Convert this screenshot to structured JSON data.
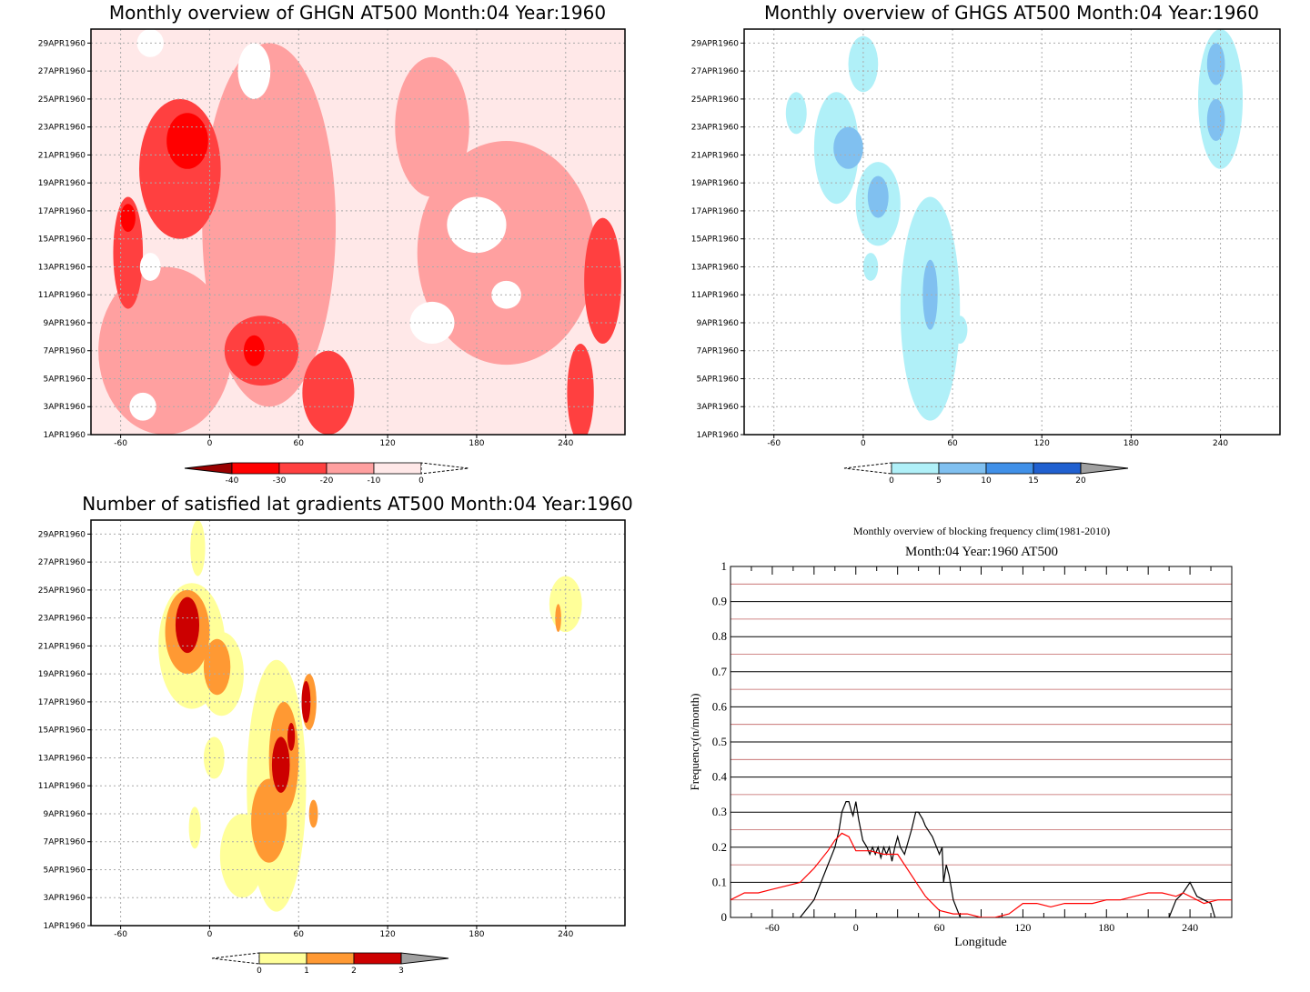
{
  "chart_data": [
    {
      "type": "heatmap",
      "title": "Monthly overview of GHGN AT500 Month:04 Year:1960",
      "x_ticks": [
        "-60",
        "0",
        "60",
        "120",
        "180",
        "240"
      ],
      "x_tick_values": [
        -60,
        0,
        60,
        120,
        180,
        240
      ],
      "xlim": [
        -80,
        280
      ],
      "y_ticks": [
        "1APR1960",
        "3APR1960",
        "5APR1960",
        "7APR1960",
        "9APR1960",
        "11APR1960",
        "13APR1960",
        "15APR1960",
        "17APR1960",
        "19APR1960",
        "21APR1960",
        "23APR1960",
        "25APR1960",
        "27APR1960",
        "29APR1960"
      ],
      "colorbar": {
        "labels": [
          "-40",
          "-30",
          "-20",
          "-10",
          "0"
        ],
        "colors": [
          "#ff0000",
          "#ff4040",
          "#ffa0a0",
          "#ffe8e8"
        ],
        "end_colors": [
          "#990000",
          "#ffffff"
        ]
      },
      "blobs": [
        {
          "x": -15,
          "day": 22,
          "w": 28,
          "h": 4,
          "level": 1
        },
        {
          "x": -55,
          "day": 16.5,
          "w": 10,
          "h": 2,
          "level": 1
        },
        {
          "x": 30,
          "day": 7,
          "w": 14,
          "h": 2.2,
          "level": 1
        },
        {
          "x": -20,
          "day": 20,
          "w": 55,
          "h": 10,
          "level": 2
        },
        {
          "x": 35,
          "day": 7,
          "w": 50,
          "h": 5,
          "level": 2
        },
        {
          "x": -55,
          "day": 14,
          "w": 20,
          "h": 8,
          "level": 2
        },
        {
          "x": 80,
          "day": 4,
          "w": 35,
          "h": 6,
          "level": 2
        },
        {
          "x": 265,
          "day": 12,
          "w": 25,
          "h": 9,
          "level": 2
        },
        {
          "x": 250,
          "day": 4,
          "w": 18,
          "h": 7,
          "level": 2
        },
        {
          "x": 40,
          "day": 16,
          "w": 90,
          "h": 26,
          "level": 3
        },
        {
          "x": -30,
          "day": 7,
          "w": 90,
          "h": 12,
          "level": 3
        },
        {
          "x": 200,
          "day": 14,
          "w": 120,
          "h": 16,
          "level": 3
        },
        {
          "x": 150,
          "day": 23,
          "w": 50,
          "h": 10,
          "level": 3
        }
      ]
    },
    {
      "type": "heatmap",
      "title": "Monthly overview of GHGS AT500 Month:04 Year:1960",
      "x_ticks": [
        "-60",
        "0",
        "60",
        "120",
        "180",
        "240"
      ],
      "x_tick_values": [
        -60,
        0,
        60,
        120,
        180,
        240
      ],
      "xlim": [
        -80,
        280
      ],
      "y_ticks": [
        "1APR1960",
        "3APR1960",
        "5APR1960",
        "7APR1960",
        "9APR1960",
        "11APR1960",
        "13APR1960",
        "15APR1960",
        "17APR1960",
        "19APR1960",
        "21APR1960",
        "23APR1960",
        "25APR1960",
        "27APR1960",
        "29APR1960"
      ],
      "colorbar": {
        "labels": [
          "0",
          "5",
          "10",
          "15",
          "20"
        ],
        "colors": [
          "#b0f0f8",
          "#80c0f0",
          "#4090e8",
          "#2060d0"
        ],
        "end_colors": [
          "#ffffff",
          "#a0a0a0"
        ]
      },
      "blobs": [
        {
          "x": -18,
          "day": 21.5,
          "w": 30,
          "h": 8,
          "level": 1
        },
        {
          "x": 10,
          "day": 17.5,
          "w": 30,
          "h": 6,
          "level": 1
        },
        {
          "x": -45,
          "day": 24,
          "w": 14,
          "h": 3,
          "level": 1
        },
        {
          "x": 0,
          "day": 27.5,
          "w": 20,
          "h": 4,
          "level": 1
        },
        {
          "x": 45,
          "day": 10,
          "w": 40,
          "h": 16,
          "level": 1
        },
        {
          "x": 240,
          "day": 25,
          "w": 30,
          "h": 10,
          "level": 1
        },
        {
          "x": 5,
          "day": 13,
          "w": 10,
          "h": 2,
          "level": 1
        },
        {
          "x": 65,
          "day": 8.5,
          "w": 10,
          "h": 2,
          "level": 1
        },
        {
          "x": -10,
          "day": 21.5,
          "w": 20,
          "h": 3,
          "level": 2
        },
        {
          "x": 10,
          "day": 18,
          "w": 14,
          "h": 3,
          "level": 2
        },
        {
          "x": 45,
          "day": 11,
          "w": 10,
          "h": 5,
          "level": 2
        },
        {
          "x": 237,
          "day": 27.5,
          "w": 12,
          "h": 3,
          "level": 2
        },
        {
          "x": 237,
          "day": 23.5,
          "w": 12,
          "h": 3,
          "level": 2
        }
      ]
    },
    {
      "type": "heatmap",
      "title": "Number of satisfied lat gradients AT500 Month:04 Year:1960",
      "x_ticks": [
        "-60",
        "0",
        "60",
        "120",
        "180",
        "240"
      ],
      "x_tick_values": [
        -60,
        0,
        60,
        120,
        180,
        240
      ],
      "xlim": [
        -80,
        280
      ],
      "y_ticks": [
        "1APR1960",
        "3APR1960",
        "5APR1960",
        "7APR1960",
        "9APR1960",
        "11APR1960",
        "13APR1960",
        "15APR1960",
        "17APR1960",
        "19APR1960",
        "21APR1960",
        "23APR1960",
        "25APR1960",
        "27APR1960",
        "29APR1960"
      ],
      "colorbar": {
        "labels": [
          "0",
          "1",
          "2",
          "3"
        ],
        "colors": [
          "#ffff99",
          "#ff9933",
          "#cc0000"
        ],
        "end_colors": [
          "#ffffff",
          "#a0a0a0"
        ]
      },
      "blobs": [
        {
          "x": -12,
          "day": 21,
          "w": 45,
          "h": 9,
          "level": 1
        },
        {
          "x": 8,
          "day": 19,
          "w": 30,
          "h": 6,
          "level": 1
        },
        {
          "x": -8,
          "day": 28,
          "w": 10,
          "h": 4,
          "level": 1
        },
        {
          "x": 45,
          "day": 11,
          "w": 40,
          "h": 18,
          "level": 1
        },
        {
          "x": 22,
          "day": 6,
          "w": 30,
          "h": 6,
          "level": 1
        },
        {
          "x": 3,
          "day": 13,
          "w": 14,
          "h": 3,
          "level": 1
        },
        {
          "x": -10,
          "day": 8,
          "w": 8,
          "h": 3,
          "level": 1
        },
        {
          "x": 240,
          "day": 24,
          "w": 22,
          "h": 4,
          "level": 1
        },
        {
          "x": -15,
          "day": 22,
          "w": 30,
          "h": 6,
          "level": 2
        },
        {
          "x": 5,
          "day": 19.5,
          "w": 18,
          "h": 4,
          "level": 2
        },
        {
          "x": 50,
          "day": 13,
          "w": 20,
          "h": 8,
          "level": 2
        },
        {
          "x": 40,
          "day": 8.5,
          "w": 24,
          "h": 6,
          "level": 2
        },
        {
          "x": 67,
          "day": 17,
          "w": 10,
          "h": 4,
          "level": 2
        },
        {
          "x": 70,
          "day": 9,
          "w": 6,
          "h": 2,
          "level": 2
        },
        {
          "x": 235,
          "day": 23,
          "w": 4,
          "h": 2,
          "level": 2
        },
        {
          "x": -15,
          "day": 22.5,
          "w": 16,
          "h": 4,
          "level": 3
        },
        {
          "x": 48,
          "day": 12.5,
          "w": 12,
          "h": 4,
          "level": 3
        },
        {
          "x": 65,
          "day": 17,
          "w": 6,
          "h": 3,
          "level": 3
        },
        {
          "x": 55,
          "day": 14.5,
          "w": 5,
          "h": 2,
          "level": 3
        }
      ]
    },
    {
      "type": "line",
      "title": "Monthly overview of blocking frequency clim(1981-2010)",
      "subtitle": "Month:04 Year:1960  AT500",
      "xlabel": "Longitude",
      "ylabel": "Frequency(n/month)",
      "xlim": [
        -90,
        270
      ],
      "ylim": [
        0,
        1
      ],
      "x_ticks": [
        "-60",
        "0",
        "60",
        "120",
        "180",
        "240"
      ],
      "x_tick_values": [
        -60,
        0,
        60,
        120,
        180,
        240
      ],
      "y_ticks": [
        "0",
        "0.1",
        "0.2",
        "0.3",
        "0.4",
        "0.5",
        "0.6",
        "0.7",
        "0.8",
        "0.9",
        "1"
      ],
      "y_tick_values": [
        0,
        0.1,
        0.2,
        0.3,
        0.4,
        0.5,
        0.6,
        0.7,
        0.8,
        0.9,
        1
      ],
      "series": [
        {
          "color": "#000000",
          "x": [
            -90,
            -45,
            -40,
            -30,
            -25,
            -20,
            -15,
            -12,
            -10,
            -7,
            -5,
            -3,
            -2,
            0,
            2,
            5,
            8,
            10,
            12,
            14,
            16,
            18,
            20,
            22,
            24,
            26,
            28,
            30,
            32,
            35,
            40,
            43,
            45,
            48,
            50,
            55,
            60,
            62,
            63,
            65,
            67,
            70,
            75,
            220,
            225,
            230,
            235,
            240,
            245,
            250,
            255,
            258,
            270
          ],
          "y": [
            null,
            null,
            0,
            0.05,
            0.1,
            0.15,
            0.2,
            0.25,
            0.3,
            0.33,
            0.33,
            0.3,
            0.29,
            0.33,
            0.28,
            0.22,
            0.2,
            0.18,
            0.2,
            0.18,
            0.2,
            0.17,
            0.2,
            0.18,
            0.2,
            0.16,
            0.2,
            0.23,
            0.2,
            0.18,
            0.25,
            0.3,
            0.3,
            0.28,
            0.26,
            0.23,
            0.18,
            0.2,
            0.1,
            0.15,
            0.12,
            0.05,
            0,
            null,
            0,
            0.05,
            0.07,
            0.1,
            0.06,
            0.05,
            0.04,
            0,
            null
          ]
        },
        {
          "color": "#ff0000",
          "x": [
            -90,
            -80,
            -70,
            -60,
            -50,
            -40,
            -30,
            -20,
            -15,
            -10,
            -5,
            0,
            5,
            10,
            20,
            30,
            40,
            45,
            50,
            55,
            60,
            70,
            80,
            90,
            100,
            110,
            120,
            130,
            140,
            150,
            160,
            170,
            180,
            190,
            200,
            210,
            220,
            230,
            235,
            240,
            250,
            260,
            270
          ],
          "y": [
            0.05,
            0.07,
            0.07,
            0.08,
            0.09,
            0.1,
            0.14,
            0.19,
            0.22,
            0.24,
            0.23,
            0.19,
            0.19,
            0.19,
            0.18,
            0.18,
            0.12,
            0.09,
            0.06,
            0.04,
            0.02,
            0.01,
            0.01,
            0,
            0,
            0.01,
            0.04,
            0.04,
            0.03,
            0.04,
            0.04,
            0.04,
            0.05,
            0.05,
            0.06,
            0.07,
            0.07,
            0.06,
            0.07,
            0.06,
            0.04,
            0.05,
            0.05
          ]
        }
      ]
    }
  ]
}
